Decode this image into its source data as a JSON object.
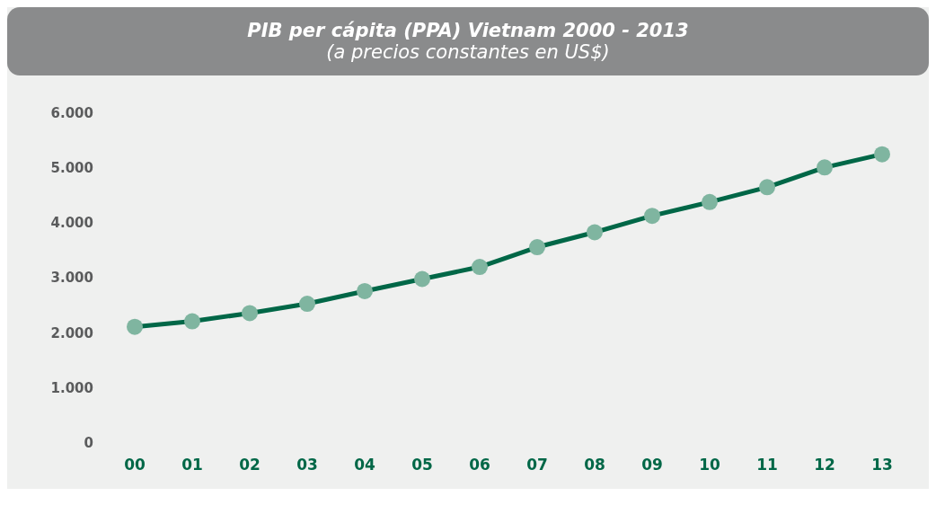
{
  "chart_data": {
    "type": "line",
    "title": "PIB per cápita (PPA) Vietnam 2000 - 2013",
    "subtitle": "(a precios constantes en US$)",
    "categories": [
      "00",
      "01",
      "02",
      "03",
      "04",
      "05",
      "06",
      "07",
      "08",
      "09",
      "10",
      "11",
      "12",
      "13"
    ],
    "series": [
      {
        "color": "#006747",
        "values": [
          2130,
          2230,
          2380,
          2550,
          2780,
          3000,
          3220,
          3580,
          3850,
          4150,
          4400,
          4670,
          5030,
          5270
        ]
      }
    ],
    "ylim": [
      0,
      6000
    ],
    "yticks": [
      0,
      {
        "value": 1000,
        "label": "1.000"
      },
      {
        "value": 2000,
        "label": "2.000"
      },
      {
        "value": 3000,
        "label": "3.000"
      },
      {
        "value": 4000,
        "label": "4.000"
      },
      {
        "value": 5000,
        "label": "5.000"
      },
      {
        "value": 6000,
        "label": "6.000"
      }
    ],
    "grid": false,
    "legend": false,
    "marker": "circle",
    "line_style": "solid"
  }
}
